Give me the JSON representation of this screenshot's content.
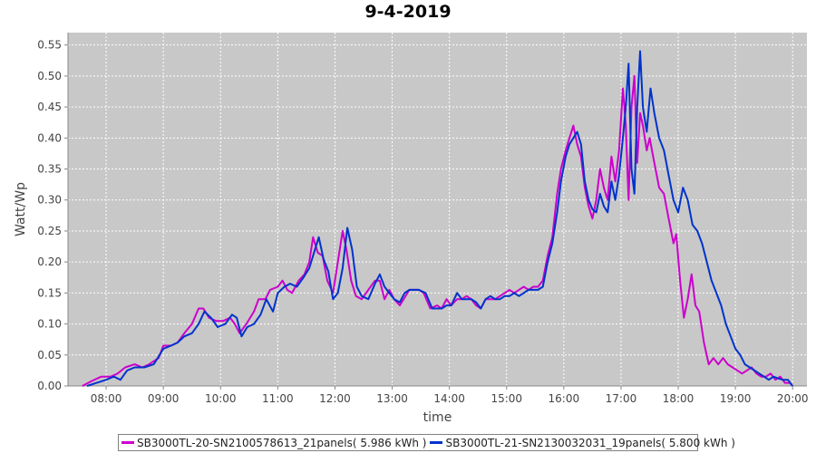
{
  "chart_data": {
    "type": "line",
    "title": "9-4-2019",
    "xlabel": "time",
    "ylabel": "Watt/Wp",
    "x_range": [
      "07:20",
      "20:15"
    ],
    "ylim": [
      0,
      0.57
    ],
    "x_ticks": [
      "08:00",
      "09:00",
      "10:00",
      "11:00",
      "12:00",
      "13:00",
      "14:00",
      "15:00",
      "16:00",
      "17:00",
      "18:00",
      "19:00",
      "20:00"
    ],
    "y_ticks": [
      "0.00",
      "0.05",
      "0.10",
      "0.15",
      "0.20",
      "0.25",
      "0.30",
      "0.35",
      "0.40",
      "0.45",
      "0.50",
      "0.55"
    ],
    "grid": true,
    "background": "#c8c8c8",
    "legend_position": "bottom",
    "series": [
      {
        "name": "SB3000TL-20-SN2100578613_21panels( 5.986 kWh )",
        "color": "#cc00cc",
        "points": [
          [
            "07:35",
            0.0
          ],
          [
            "07:45",
            0.008
          ],
          [
            "07:55",
            0.015
          ],
          [
            "08:05",
            0.015
          ],
          [
            "08:12",
            0.02
          ],
          [
            "08:20",
            0.03
          ],
          [
            "08:30",
            0.035
          ],
          [
            "08:38",
            0.03
          ],
          [
            "08:45",
            0.035
          ],
          [
            "08:55",
            0.045
          ],
          [
            "09:00",
            0.065
          ],
          [
            "09:08",
            0.065
          ],
          [
            "09:15",
            0.07
          ],
          [
            "09:22",
            0.085
          ],
          [
            "09:30",
            0.1
          ],
          [
            "09:37",
            0.125
          ],
          [
            "09:42",
            0.125
          ],
          [
            "09:48",
            0.11
          ],
          [
            "09:55",
            0.105
          ],
          [
            "10:03",
            0.105
          ],
          [
            "10:10",
            0.11
          ],
          [
            "10:15",
            0.1
          ],
          [
            "10:20",
            0.085
          ],
          [
            "10:27",
            0.1
          ],
          [
            "10:35",
            0.12
          ],
          [
            "10:40",
            0.14
          ],
          [
            "10:47",
            0.14
          ],
          [
            "10:52",
            0.155
          ],
          [
            "11:00",
            0.16
          ],
          [
            "11:05",
            0.17
          ],
          [
            "11:10",
            0.155
          ],
          [
            "11:15",
            0.15
          ],
          [
            "11:22",
            0.17
          ],
          [
            "11:28",
            0.18
          ],
          [
            "11:33",
            0.2
          ],
          [
            "11:37",
            0.24
          ],
          [
            "11:42",
            0.215
          ],
          [
            "11:47",
            0.21
          ],
          [
            "11:52",
            0.17
          ],
          [
            "11:58",
            0.15
          ],
          [
            "12:03",
            0.2
          ],
          [
            "12:08",
            0.25
          ],
          [
            "12:12",
            0.22
          ],
          [
            "12:17",
            0.17
          ],
          [
            "12:22",
            0.145
          ],
          [
            "12:28",
            0.14
          ],
          [
            "12:35",
            0.155
          ],
          [
            "12:42",
            0.17
          ],
          [
            "12:47",
            0.17
          ],
          [
            "12:52",
            0.14
          ],
          [
            "12:57",
            0.155
          ],
          [
            "13:02",
            0.14
          ],
          [
            "13:08",
            0.13
          ],
          [
            "13:12",
            0.14
          ],
          [
            "13:18",
            0.155
          ],
          [
            "13:23",
            0.155
          ],
          [
            "13:28",
            0.155
          ],
          [
            "13:33",
            0.15
          ],
          [
            "13:40",
            0.125
          ],
          [
            "13:47",
            0.13
          ],
          [
            "13:52",
            0.125
          ],
          [
            "13:57",
            0.14
          ],
          [
            "14:02",
            0.13
          ],
          [
            "14:08",
            0.14
          ],
          [
            "14:13",
            0.14
          ],
          [
            "14:18",
            0.145
          ],
          [
            "14:23",
            0.14
          ],
          [
            "14:28",
            0.13
          ],
          [
            "14:33",
            0.125
          ],
          [
            "14:38",
            0.14
          ],
          [
            "14:43",
            0.14
          ],
          [
            "14:48",
            0.14
          ],
          [
            "14:53",
            0.145
          ],
          [
            "14:58",
            0.15
          ],
          [
            "15:03",
            0.155
          ],
          [
            "15:08",
            0.15
          ],
          [
            "15:13",
            0.155
          ],
          [
            "15:18",
            0.16
          ],
          [
            "15:23",
            0.155
          ],
          [
            "15:28",
            0.16
          ],
          [
            "15:33",
            0.16
          ],
          [
            "15:38",
            0.17
          ],
          [
            "15:43",
            0.21
          ],
          [
            "15:48",
            0.24
          ],
          [
            "15:53",
            0.31
          ],
          [
            "15:57",
            0.35
          ],
          [
            "16:02",
            0.38
          ],
          [
            "16:06",
            0.4
          ],
          [
            "16:10",
            0.42
          ],
          [
            "16:14",
            0.39
          ],
          [
            "16:18",
            0.37
          ],
          [
            "16:22",
            0.32
          ],
          [
            "16:26",
            0.29
          ],
          [
            "16:30",
            0.27
          ],
          [
            "16:34",
            0.3
          ],
          [
            "16:38",
            0.35
          ],
          [
            "16:42",
            0.32
          ],
          [
            "16:46",
            0.3
          ],
          [
            "16:50",
            0.37
          ],
          [
            "16:54",
            0.33
          ],
          [
            "16:58",
            0.38
          ],
          [
            "17:02",
            0.48
          ],
          [
            "17:05",
            0.42
          ],
          [
            "17:08",
            0.3
          ],
          [
            "17:11",
            0.45
          ],
          [
            "17:14",
            0.5
          ],
          [
            "17:17",
            0.36
          ],
          [
            "17:20",
            0.44
          ],
          [
            "17:23",
            0.42
          ],
          [
            "17:27",
            0.38
          ],
          [
            "17:30",
            0.4
          ],
          [
            "17:35",
            0.36
          ],
          [
            "17:40",
            0.32
          ],
          [
            "17:45",
            0.31
          ],
          [
            "17:50",
            0.27
          ],
          [
            "17:55",
            0.23
          ],
          [
            "17:58",
            0.245
          ],
          [
            "18:02",
            0.17
          ],
          [
            "18:06",
            0.11
          ],
          [
            "18:10",
            0.14
          ],
          [
            "18:14",
            0.18
          ],
          [
            "18:18",
            0.13
          ],
          [
            "18:22",
            0.12
          ],
          [
            "18:27",
            0.07
          ],
          [
            "18:32",
            0.035
          ],
          [
            "18:37",
            0.045
          ],
          [
            "18:42",
            0.035
          ],
          [
            "18:47",
            0.045
          ],
          [
            "18:52",
            0.035
          ],
          [
            "18:57",
            0.03
          ],
          [
            "19:02",
            0.025
          ],
          [
            "19:07",
            0.02
          ],
          [
            "19:12",
            0.025
          ],
          [
            "19:17",
            0.03
          ],
          [
            "19:22",
            0.02
          ],
          [
            "19:27",
            0.015
          ],
          [
            "19:32",
            0.015
          ],
          [
            "19:37",
            0.02
          ],
          [
            "19:42",
            0.01
          ],
          [
            "19:47",
            0.015
          ],
          [
            "19:52",
            0.005
          ],
          [
            "19:57",
            0.005
          ],
          [
            "20:00",
            0.0
          ]
        ]
      },
      {
        "name": "SB3000TL-21-SN2130032031_19panels( 5.800 kWh )",
        "color": "#0033cc",
        "points": [
          [
            "07:40",
            0.0
          ],
          [
            "07:50",
            0.005
          ],
          [
            "08:00",
            0.01
          ],
          [
            "08:08",
            0.015
          ],
          [
            "08:15",
            0.01
          ],
          [
            "08:22",
            0.025
          ],
          [
            "08:30",
            0.03
          ],
          [
            "08:40",
            0.03
          ],
          [
            "08:50",
            0.035
          ],
          [
            "09:00",
            0.06
          ],
          [
            "09:08",
            0.065
          ],
          [
            "09:15",
            0.07
          ],
          [
            "09:22",
            0.08
          ],
          [
            "09:30",
            0.085
          ],
          [
            "09:37",
            0.1
          ],
          [
            "09:43",
            0.12
          ],
          [
            "09:50",
            0.11
          ],
          [
            "09:57",
            0.095
          ],
          [
            "10:05",
            0.1
          ],
          [
            "10:12",
            0.115
          ],
          [
            "10:17",
            0.11
          ],
          [
            "10:22",
            0.08
          ],
          [
            "10:28",
            0.095
          ],
          [
            "10:35",
            0.1
          ],
          [
            "10:42",
            0.115
          ],
          [
            "10:48",
            0.14
          ],
          [
            "10:55",
            0.12
          ],
          [
            "11:00",
            0.15
          ],
          [
            "11:07",
            0.16
          ],
          [
            "11:13",
            0.165
          ],
          [
            "11:20",
            0.16
          ],
          [
            "11:27",
            0.175
          ],
          [
            "11:33",
            0.19
          ],
          [
            "11:38",
            0.215
          ],
          [
            "11:43",
            0.24
          ],
          [
            "11:48",
            0.205
          ],
          [
            "11:53",
            0.185
          ],
          [
            "11:58",
            0.14
          ],
          [
            "12:03",
            0.15
          ],
          [
            "12:08",
            0.19
          ],
          [
            "12:13",
            0.255
          ],
          [
            "12:18",
            0.22
          ],
          [
            "12:23",
            0.16
          ],
          [
            "12:28",
            0.145
          ],
          [
            "12:35",
            0.14
          ],
          [
            "12:42",
            0.165
          ],
          [
            "12:47",
            0.18
          ],
          [
            "12:52",
            0.16
          ],
          [
            "12:57",
            0.15
          ],
          [
            "13:02",
            0.14
          ],
          [
            "13:08",
            0.135
          ],
          [
            "13:13",
            0.15
          ],
          [
            "13:18",
            0.155
          ],
          [
            "13:23",
            0.155
          ],
          [
            "13:28",
            0.155
          ],
          [
            "13:35",
            0.15
          ],
          [
            "13:42",
            0.125
          ],
          [
            "13:47",
            0.125
          ],
          [
            "13:52",
            0.125
          ],
          [
            "13:57",
            0.13
          ],
          [
            "14:02",
            0.13
          ],
          [
            "14:08",
            0.15
          ],
          [
            "14:13",
            0.14
          ],
          [
            "14:18",
            0.14
          ],
          [
            "14:23",
            0.14
          ],
          [
            "14:28",
            0.135
          ],
          [
            "14:33",
            0.125
          ],
          [
            "14:38",
            0.14
          ],
          [
            "14:43",
            0.145
          ],
          [
            "14:48",
            0.14
          ],
          [
            "14:53",
            0.14
          ],
          [
            "14:58",
            0.145
          ],
          [
            "15:03",
            0.145
          ],
          [
            "15:08",
            0.15
          ],
          [
            "15:13",
            0.145
          ],
          [
            "15:18",
            0.15
          ],
          [
            "15:23",
            0.155
          ],
          [
            "15:28",
            0.155
          ],
          [
            "15:33",
            0.155
          ],
          [
            "15:38",
            0.16
          ],
          [
            "15:43",
            0.2
          ],
          [
            "15:48",
            0.23
          ],
          [
            "15:53",
            0.28
          ],
          [
            "15:57",
            0.33
          ],
          [
            "16:02",
            0.37
          ],
          [
            "16:06",
            0.39
          ],
          [
            "16:10",
            0.4
          ],
          [
            "16:14",
            0.41
          ],
          [
            "16:18",
            0.39
          ],
          [
            "16:22",
            0.33
          ],
          [
            "16:26",
            0.3
          ],
          [
            "16:30",
            0.285
          ],
          [
            "16:34",
            0.28
          ],
          [
            "16:38",
            0.31
          ],
          [
            "16:42",
            0.29
          ],
          [
            "16:46",
            0.28
          ],
          [
            "16:50",
            0.33
          ],
          [
            "16:54",
            0.3
          ],
          [
            "16:58",
            0.34
          ],
          [
            "17:02",
            0.4
          ],
          [
            "17:05",
            0.45
          ],
          [
            "17:08",
            0.52
          ],
          [
            "17:11",
            0.35
          ],
          [
            "17:14",
            0.31
          ],
          [
            "17:17",
            0.45
          ],
          [
            "17:20",
            0.54
          ],
          [
            "17:23",
            0.45
          ],
          [
            "17:27",
            0.41
          ],
          [
            "17:31",
            0.48
          ],
          [
            "17:35",
            0.44
          ],
          [
            "17:40",
            0.4
          ],
          [
            "17:45",
            0.38
          ],
          [
            "17:50",
            0.34
          ],
          [
            "17:55",
            0.3
          ],
          [
            "18:00",
            0.28
          ],
          [
            "18:05",
            0.32
          ],
          [
            "18:10",
            0.3
          ],
          [
            "18:15",
            0.26
          ],
          [
            "18:20",
            0.25
          ],
          [
            "18:25",
            0.23
          ],
          [
            "18:30",
            0.2
          ],
          [
            "18:35",
            0.17
          ],
          [
            "18:40",
            0.15
          ],
          [
            "18:45",
            0.13
          ],
          [
            "18:50",
            0.1
          ],
          [
            "18:55",
            0.08
          ],
          [
            "19:00",
            0.06
          ],
          [
            "19:05",
            0.05
          ],
          [
            "19:10",
            0.035
          ],
          [
            "19:15",
            0.03
          ],
          [
            "19:20",
            0.025
          ],
          [
            "19:25",
            0.02
          ],
          [
            "19:30",
            0.015
          ],
          [
            "19:35",
            0.01
          ],
          [
            "19:40",
            0.015
          ],
          [
            "19:45",
            0.012
          ],
          [
            "19:50",
            0.01
          ],
          [
            "19:55",
            0.01
          ],
          [
            "20:00",
            0.0
          ]
        ]
      }
    ]
  }
}
